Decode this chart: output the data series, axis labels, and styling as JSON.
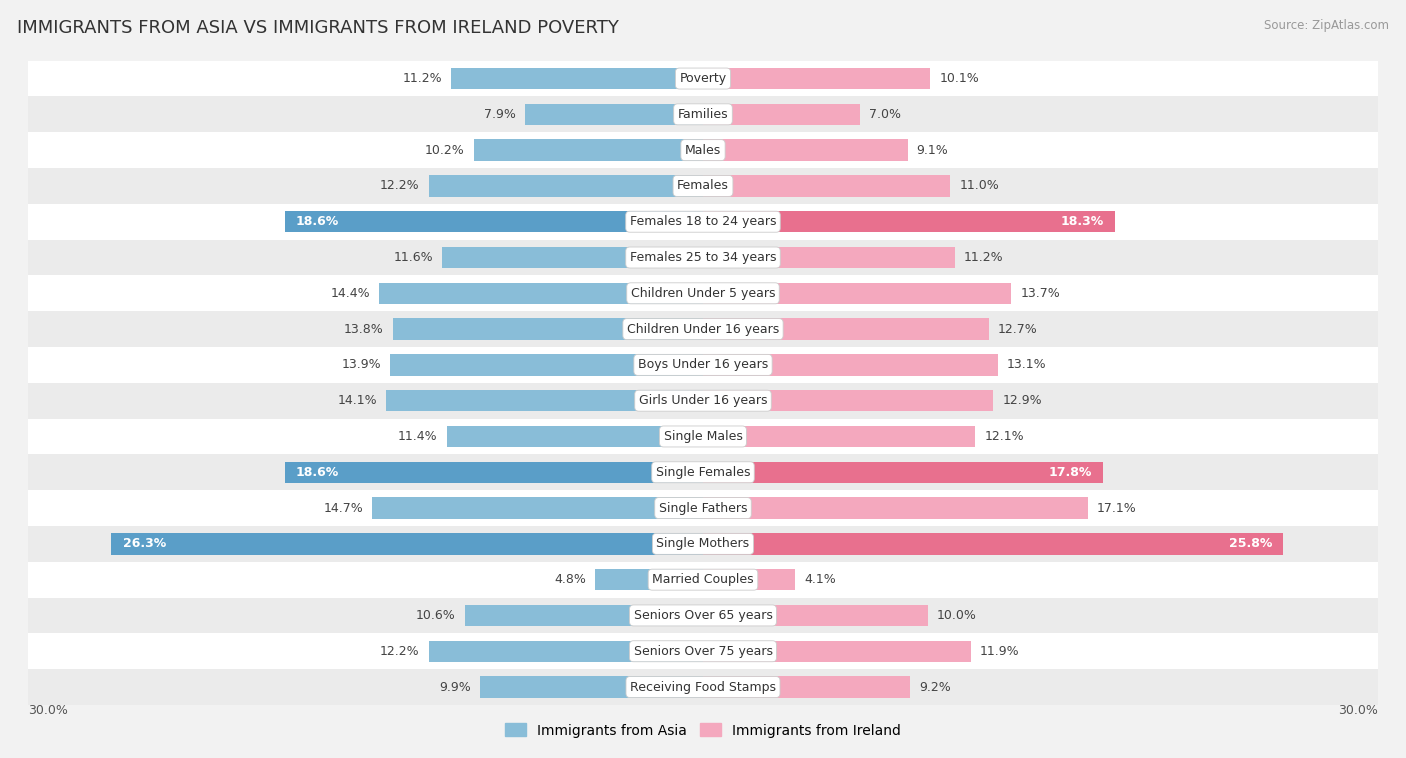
{
  "title": "IMMIGRANTS FROM ASIA VS IMMIGRANTS FROM IRELAND POVERTY",
  "source": "Source: ZipAtlas.com",
  "categories": [
    "Poverty",
    "Families",
    "Males",
    "Females",
    "Females 18 to 24 years",
    "Females 25 to 34 years",
    "Children Under 5 years",
    "Children Under 16 years",
    "Boys Under 16 years",
    "Girls Under 16 years",
    "Single Males",
    "Single Females",
    "Single Fathers",
    "Single Mothers",
    "Married Couples",
    "Seniors Over 65 years",
    "Seniors Over 75 years",
    "Receiving Food Stamps"
  ],
  "asia_values": [
    11.2,
    7.9,
    10.2,
    12.2,
    18.6,
    11.6,
    14.4,
    13.8,
    13.9,
    14.1,
    11.4,
    18.6,
    14.7,
    26.3,
    4.8,
    10.6,
    12.2,
    9.9
  ],
  "ireland_values": [
    10.1,
    7.0,
    9.1,
    11.0,
    18.3,
    11.2,
    13.7,
    12.7,
    13.1,
    12.9,
    12.1,
    17.8,
    17.1,
    25.8,
    4.1,
    10.0,
    11.9,
    9.2
  ],
  "asia_color": "#89bdd8",
  "ireland_color": "#f4a8be",
  "asia_color_highlight": "#5a9ec8",
  "ireland_color_highlight": "#e8708e",
  "bg_color": "#f2f2f2",
  "row_color_odd": "#ffffff",
  "row_color_even": "#ebebeb",
  "xlim": 30.0,
  "label_fontsize": 9,
  "title_fontsize": 13,
  "legend_fontsize": 10,
  "bar_height": 0.6
}
